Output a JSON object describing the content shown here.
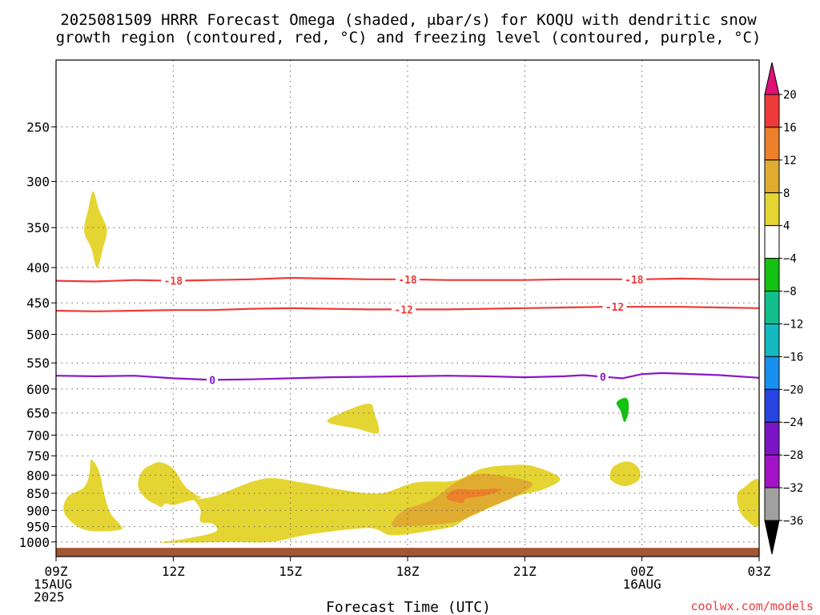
{
  "chart_data": {
    "type": "heatmap",
    "title": [
      "2025081509 HRRR Forecast Omega (shaded, μbar/s) for KOQU with dendritic snow",
      "growth region (contoured, red, °C) and freezing level (contoured, purple, °C)"
    ],
    "xlabel": "Forecast Time (UTC)",
    "ylabel": "",
    "x_ticks": [
      {
        "hours": 0,
        "lines": [
          "09Z",
          "15AUG",
          "2025"
        ]
      },
      {
        "hours": 3,
        "lines": [
          "12Z"
        ]
      },
      {
        "hours": 6,
        "lines": [
          "15Z"
        ]
      },
      {
        "hours": 9,
        "lines": [
          "18Z"
        ]
      },
      {
        "hours": 12,
        "lines": [
          "21Z"
        ]
      },
      {
        "hours": 15,
        "lines": [
          "00Z",
          "16AUG"
        ]
      },
      {
        "hours": 18,
        "lines": [
          "03Z"
        ]
      }
    ],
    "x_range": [
      0,
      18
    ],
    "y_range": [
      1050,
      200
    ],
    "y_scale": "log-pressure",
    "y_ticks": [
      250,
      300,
      350,
      400,
      450,
      500,
      550,
      600,
      650,
      700,
      750,
      800,
      850,
      900,
      950,
      1000
    ],
    "grid": true,
    "colorbar": {
      "labels": [
        "20",
        "16",
        "12",
        "8",
        "4",
        "−4",
        "−8",
        "−12",
        "−16",
        "−20",
        "−24",
        "−28",
        "−32",
        "−36"
      ],
      "colors": [
        "#dd1177",
        "#ef3a3a",
        "#ec802b",
        "#e0ac30",
        "#e5d533",
        "#ffffff",
        "#13c113",
        "#12bf8a",
        "#12b9c0",
        "#1890ef",
        "#2844e0",
        "#7a14c4",
        "#a314c8",
        "#a0a0a0",
        "#000000"
      ]
    },
    "contours": [
      {
        "label": "-18",
        "color": "#ef3a3a",
        "points": [
          [
            0,
            418
          ],
          [
            1,
            419
          ],
          [
            2,
            417
          ],
          [
            3,
            418
          ],
          [
            4,
            417
          ],
          [
            5,
            416
          ],
          [
            6,
            414
          ],
          [
            7,
            415
          ],
          [
            8,
            416
          ],
          [
            9,
            416
          ],
          [
            10,
            417
          ],
          [
            11,
            417
          ],
          [
            12,
            417
          ],
          [
            13,
            416
          ],
          [
            14,
            416
          ],
          [
            15,
            416
          ],
          [
            16,
            415
          ],
          [
            17,
            416
          ],
          [
            18,
            416
          ]
        ],
        "label_at": [
          3.0,
          9.0,
          14.8
        ]
      },
      {
        "label": "-12",
        "color": "#ef3a3a",
        "points": [
          [
            0,
            462
          ],
          [
            1,
            463
          ],
          [
            2,
            462
          ],
          [
            3,
            461
          ],
          [
            4,
            461
          ],
          [
            5,
            459
          ],
          [
            6,
            458
          ],
          [
            7,
            459
          ],
          [
            8,
            460
          ],
          [
            9,
            460
          ],
          [
            10,
            460
          ],
          [
            11,
            459
          ],
          [
            12,
            458
          ],
          [
            13,
            457
          ],
          [
            14,
            456
          ],
          [
            15,
            456
          ],
          [
            16,
            456
          ],
          [
            17,
            457
          ],
          [
            18,
            458
          ]
        ],
        "label_at": [
          8.9,
          14.3
        ]
      },
      {
        "label": "0",
        "color": "#8a15c9",
        "points": [
          [
            0,
            574
          ],
          [
            1,
            575
          ],
          [
            2,
            574
          ],
          [
            3,
            579
          ],
          [
            4,
            582
          ],
          [
            5,
            581
          ],
          [
            6,
            579
          ],
          [
            7,
            577
          ],
          [
            8,
            576
          ],
          [
            9,
            575
          ],
          [
            10,
            574
          ],
          [
            11,
            575
          ],
          [
            12,
            577
          ],
          [
            13,
            575
          ],
          [
            13.5,
            573
          ],
          [
            14,
            576
          ],
          [
            14.5,
            579
          ],
          [
            15,
            571
          ],
          [
            15.5,
            569
          ],
          [
            16,
            570
          ],
          [
            17,
            573
          ],
          [
            18,
            578
          ]
        ],
        "label_at": [
          4.0,
          14.0
        ]
      }
    ],
    "omega_regions": [
      {
        "value": 4,
        "color": "#e5d533",
        "points": [
          [
            0.95,
            310
          ],
          [
            1.1,
            330
          ],
          [
            1.3,
            352
          ],
          [
            1.2,
            375
          ],
          [
            1.05,
            400
          ],
          [
            0.9,
            375
          ],
          [
            0.72,
            354
          ],
          [
            0.82,
            330
          ]
        ]
      },
      {
        "value": 4,
        "color": "#e5d533",
        "points": [
          [
            0.9,
            760
          ],
          [
            1.1,
            790
          ],
          [
            1.25,
            860
          ],
          [
            1.4,
            910
          ],
          [
            1.65,
            945
          ],
          [
            1.65,
            960
          ],
          [
            1.0,
            965
          ],
          [
            0.55,
            950
          ],
          [
            0.2,
            905
          ],
          [
            0.3,
            860
          ],
          [
            0.7,
            835
          ],
          [
            0.85,
            800
          ]
        ]
      },
      {
        "value": 4,
        "color": "#e5d533",
        "points": [
          [
            2.7,
            767
          ],
          [
            3.0,
            783
          ],
          [
            3.3,
            830
          ],
          [
            3.6,
            855
          ],
          [
            3.7,
            862
          ],
          [
            3.3,
            875
          ],
          [
            3.0,
            884
          ],
          [
            2.8,
            880
          ],
          [
            2.7,
            890
          ],
          [
            2.55,
            882
          ],
          [
            2.3,
            865
          ],
          [
            2.1,
            830
          ],
          [
            2.2,
            790
          ],
          [
            2.5,
            770
          ]
        ]
      },
      {
        "value": 4,
        "color": "#e5d533",
        "points": [
          [
            3.4,
            866
          ],
          [
            4.0,
            860
          ],
          [
            5.3,
            810
          ],
          [
            6.3,
            820
          ],
          [
            7.3,
            840
          ],
          [
            8.3,
            850
          ],
          [
            9.2,
            820
          ],
          [
            10.2,
            815
          ],
          [
            10.9,
            783
          ],
          [
            11.6,
            774
          ],
          [
            12.2,
            776
          ],
          [
            12.9,
            808
          ],
          [
            12.5,
            838
          ],
          [
            11.8,
            858
          ],
          [
            11.2,
            888
          ],
          [
            10.5,
            925
          ],
          [
            10.2,
            948
          ],
          [
            9.6,
            963
          ],
          [
            8.6,
            978
          ],
          [
            8.0,
            955
          ],
          [
            6.5,
            975
          ],
          [
            5.5,
            1000
          ],
          [
            4.5,
            1000
          ],
          [
            3.6,
            1002
          ],
          [
            3.1,
            1002
          ],
          [
            2.7,
            1002
          ],
          [
            3.5,
            985
          ],
          [
            4.1,
            965
          ],
          [
            4.0,
            940
          ],
          [
            3.7,
            935
          ],
          [
            3.7,
            900
          ],
          [
            3.55,
            872
          ]
        ]
      },
      {
        "value": 8,
        "color": "#e0ac30",
        "points": [
          [
            10.8,
            797
          ],
          [
            11.5,
            803
          ],
          [
            12.2,
            823
          ],
          [
            11.7,
            862
          ],
          [
            11.1,
            890
          ],
          [
            10.6,
            918
          ],
          [
            10.2,
            937
          ],
          [
            9.2,
            948
          ],
          [
            8.6,
            946
          ],
          [
            8.9,
            900
          ],
          [
            9.6,
            870
          ],
          [
            10.2,
            822
          ]
        ]
      },
      {
        "value": 12,
        "color": "#ec802b",
        "points": [
          [
            10.7,
            840
          ],
          [
            11.4,
            838
          ],
          [
            11.0,
            856
          ],
          [
            10.5,
            865
          ],
          [
            10.4,
            878
          ],
          [
            10.0,
            865
          ],
          [
            10.2,
            840
          ]
        ]
      },
      {
        "value": 4,
        "color": "#e5d533",
        "points": [
          [
            8.0,
            630
          ],
          [
            8.15,
            650
          ],
          [
            8.25,
            695
          ],
          [
            7.7,
            685
          ],
          [
            6.95,
            670
          ],
          [
            7.3,
            650
          ]
        ]
      },
      {
        "value": -4,
        "color": "#13c113",
        "points": [
          [
            14.55,
            618
          ],
          [
            14.65,
            625
          ],
          [
            14.65,
            650
          ],
          [
            14.55,
            670
          ],
          [
            14.45,
            645
          ],
          [
            14.35,
            628
          ]
        ]
      },
      {
        "value": 4,
        "color": "#e5d533",
        "points": [
          [
            14.55,
            765
          ],
          [
            14.8,
            770
          ],
          [
            14.95,
            790
          ],
          [
            14.9,
            815
          ],
          [
            14.55,
            830
          ],
          [
            14.2,
            812
          ],
          [
            14.25,
            780
          ]
        ]
      },
      {
        "value": 4,
        "color": "#e5d533",
        "points": [
          [
            17.6,
            835
          ],
          [
            18,
            815
          ],
          [
            18,
            945
          ],
          [
            17.6,
            920
          ],
          [
            17.45,
            880
          ],
          [
            17.45,
            850
          ]
        ]
      }
    ],
    "surface_color": "#a35631"
  },
  "credit": "coolwx.com/models"
}
